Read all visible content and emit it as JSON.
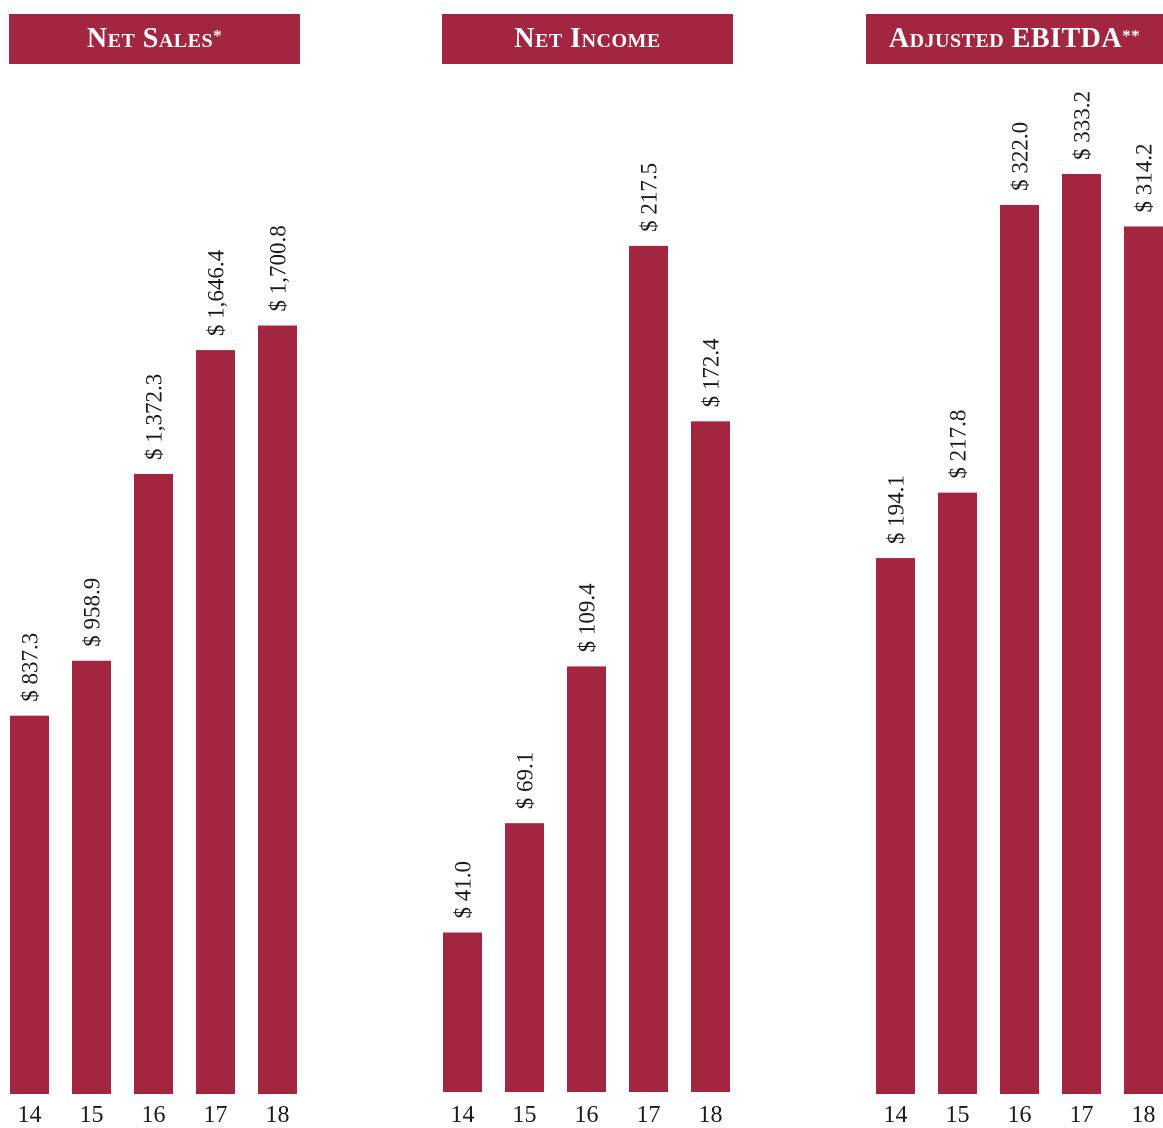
{
  "accent_color": "#a32641",
  "chart_data": [
    {
      "type": "bar",
      "title": "Net Sales",
      "title_mark": "*",
      "categories": [
        "14",
        "15",
        "16",
        "17",
        "18"
      ],
      "values": [
        837.3,
        958.9,
        1372.3,
        1646.4,
        1700.8
      ],
      "labels": [
        "$ 837.3",
        "$ 958.9",
        "$ 1,372.3",
        "$ 1,646.4",
        "$ 1,700.8"
      ],
      "ylim": [
        0,
        2200
      ],
      "grid": false
    },
    {
      "type": "bar",
      "title": "Net Income",
      "title_mark": "",
      "categories": [
        "14",
        "15",
        "16",
        "17",
        "18"
      ],
      "values": [
        41.0,
        69.1,
        109.4,
        217.5,
        172.4
      ],
      "labels": [
        "$ 41.0",
        "$ 69.1",
        "$ 109.4",
        "$ 217.5",
        "$ 172.4"
      ],
      "ylim": [
        0,
        255
      ],
      "grid": false
    },
    {
      "type": "bar",
      "title": "Adjusted EBITDA",
      "title_mark": "**",
      "categories": [
        "14",
        "15",
        "16",
        "17",
        "18"
      ],
      "values": [
        194.1,
        217.8,
        322.0,
        333.2,
        314.2
      ],
      "labels": [
        "$ 194.1",
        "$ 217.8",
        "$ 322.0",
        "$ 333.2",
        "$ 314.2"
      ],
      "ylim": [
        0,
        360
      ],
      "grid": false
    }
  ]
}
